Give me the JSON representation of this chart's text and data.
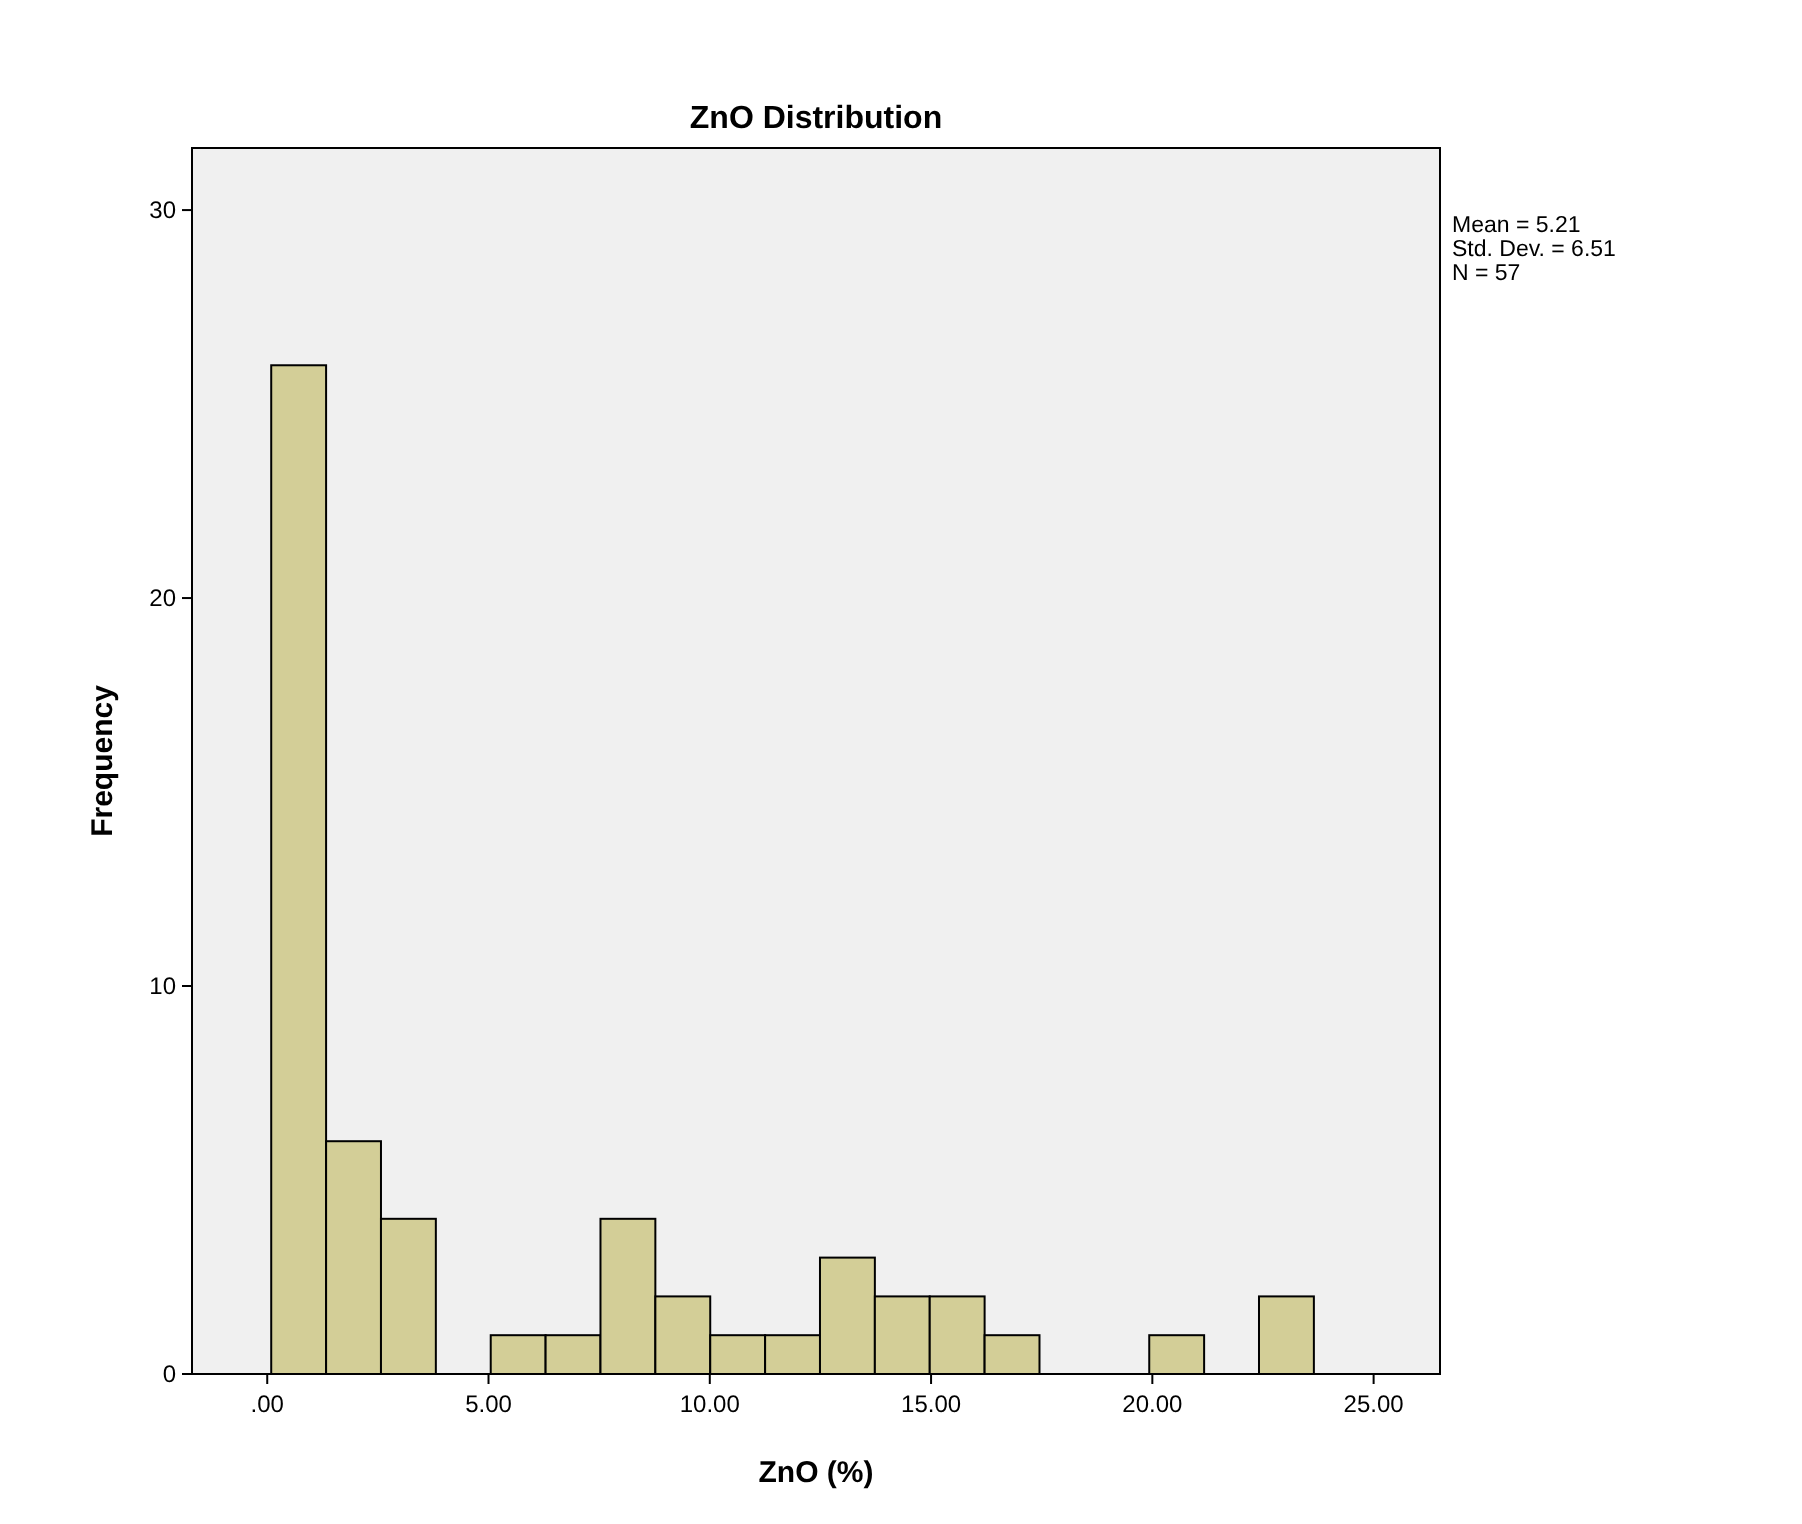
{
  "chart_data": {
    "type": "histogram",
    "title": "ZnO Distribution",
    "xlabel": "ZnO (%)",
    "ylabel": "Frequency",
    "bins": [
      0.09,
      1.33,
      2.57,
      3.81,
      5.05,
      6.29,
      7.53,
      8.77,
      10.01,
      11.25,
      12.49,
      13.73,
      14.97,
      16.21,
      17.45,
      18.69,
      19.93,
      21.17,
      22.41,
      23.65
    ],
    "values": [
      26,
      6,
      4,
      0,
      1,
      1,
      4,
      2,
      1,
      1,
      3,
      2,
      2,
      1,
      0,
      0,
      1,
      0,
      2
    ],
    "color": "#d3ce97",
    "xlim": [
      -1.7,
      26.5
    ],
    "xticks": [
      {
        "value": 0,
        "label": ".00"
      },
      {
        "value": 5,
        "label": "5.00"
      },
      {
        "value": 10,
        "label": "10.00"
      },
      {
        "value": 15,
        "label": "15.00"
      },
      {
        "value": 20,
        "label": "20.00"
      },
      {
        "value": 25,
        "label": "25.00"
      }
    ],
    "ylim": [
      0,
      31.6
    ],
    "yticks": [
      0,
      10,
      20,
      30
    ],
    "annotations": [
      "Mean = 5.21",
      "Std. Dev. = 6.51",
      "N = 57"
    ],
    "grid": false
  }
}
